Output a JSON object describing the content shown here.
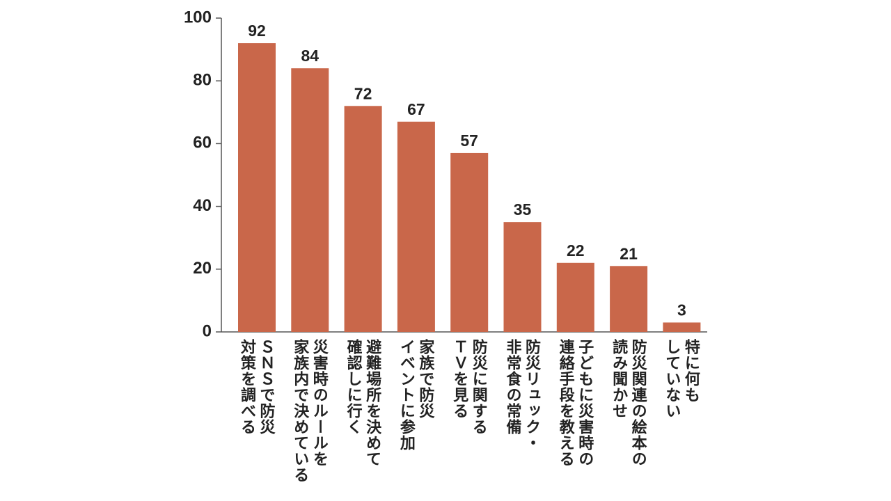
{
  "chart_data": {
    "type": "bar",
    "categories": [
      "ＳＮＳで防災\n対策を調べる",
      "災害時のルールを\n家族内で決めている",
      "避難場所を決めて\n確認しに行く",
      "家族で防災\nイベントに参加",
      "防災に関する\nＴＶを見る",
      "防災リュック・\n非常食の常備",
      "子どもに災害時の\n連絡手段を教える",
      "防災関連の絵本の\n読み聞かせ",
      "特に何も\nしていない"
    ],
    "values": [
      92,
      84,
      72,
      67,
      57,
      35,
      22,
      21,
      3
    ],
    "color": "#c9674a",
    "ylim": [
      0,
      100
    ],
    "yticks": [
      0,
      20,
      40,
      60,
      80,
      100
    ],
    "grid": false
  }
}
